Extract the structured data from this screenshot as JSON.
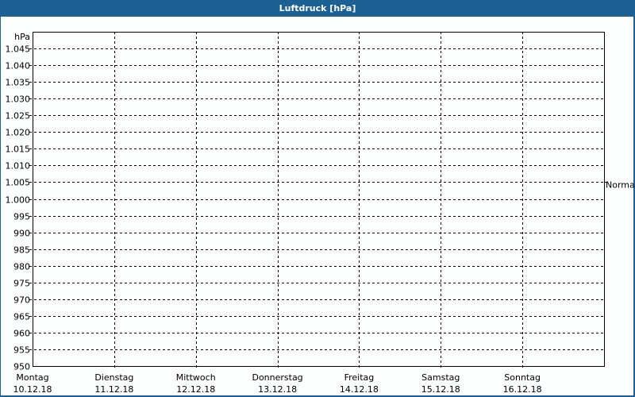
{
  "window": {
    "title": "Luftdruck [hPa]"
  },
  "colors": {
    "titlebar": "#1d6194",
    "background": "#fcfdfd",
    "grid": "#000000"
  },
  "chart_data": {
    "type": "line",
    "title": "Luftdruck [hPa]",
    "ylabel": "hPa",
    "ylim": [
      950,
      1050
    ],
    "yticks": [
      950,
      955,
      960,
      965,
      970,
      975,
      980,
      985,
      990,
      995,
      1000,
      1005,
      1010,
      1015,
      1020,
      1025,
      1030,
      1035,
      1040,
      1045
    ],
    "ytick_labels": [
      "950",
      "955",
      "960",
      "965",
      "970",
      "975",
      "980",
      "985",
      "990",
      "995",
      "1.000",
      "1.005",
      "1.010",
      "1.015",
      "1.020",
      "1.025",
      "1.030",
      "1.035",
      "1.040",
      "1.045"
    ],
    "categories": [
      {
        "day": "Montag",
        "date": "10.12.18"
      },
      {
        "day": "Dienstag",
        "date": "11.12.18"
      },
      {
        "day": "Mittwoch",
        "date": "12.12.18"
      },
      {
        "day": "Donnerstag",
        "date": "13.12.18"
      },
      {
        "day": "Freitag",
        "date": "14.12.18"
      },
      {
        "day": "Samstag",
        "date": "15.12.18"
      },
      {
        "day": "Sonntag",
        "date": "16.12.18"
      }
    ],
    "reference": {
      "label": "Normal",
      "value": 1005
    },
    "series": [],
    "grid": true
  }
}
